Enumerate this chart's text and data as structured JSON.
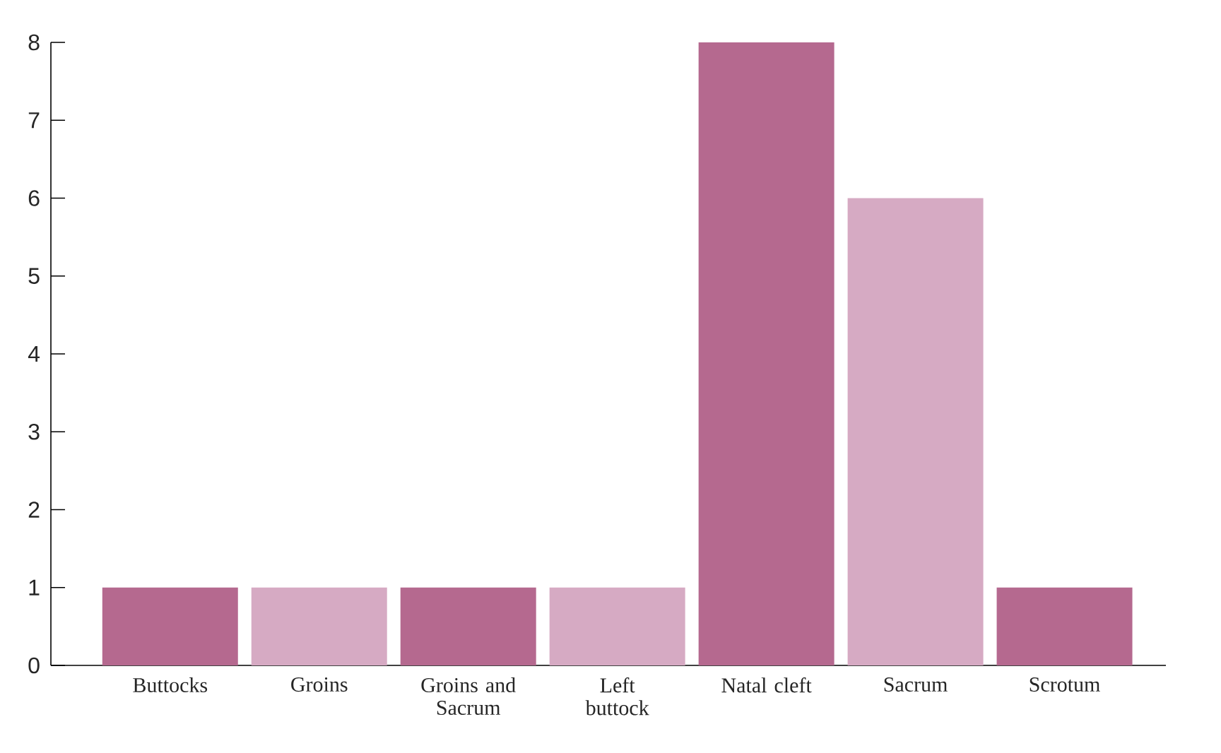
{
  "chart_data": {
    "type": "bar",
    "categories": [
      "Buttocks",
      "Groins",
      "Groins and Sacrum",
      "Left buttock",
      "Natal cleft",
      "Sacrum",
      "Scrotum"
    ],
    "values": [
      1,
      1,
      1,
      1,
      8,
      6,
      1
    ],
    "colors": [
      "#b5698f",
      "#d6aac3",
      "#b5698f",
      "#d6aac3",
      "#b5698f",
      "#d6aac3",
      "#b5698f"
    ],
    "ylim": [
      0,
      8
    ],
    "yticks": [
      0,
      1,
      2,
      3,
      4,
      5,
      6,
      7,
      8
    ],
    "grid": false
  }
}
